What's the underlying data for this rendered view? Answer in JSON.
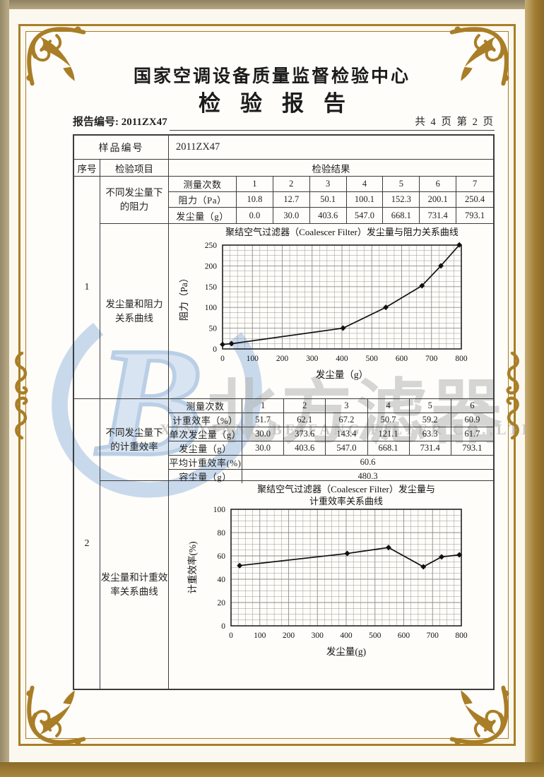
{
  "page": {
    "org_title": "国家空调设备质量监督检验中心",
    "report_title": "检验报告",
    "report_no": "报告编号: 2011ZX47",
    "page_info": "共 4 页 第 2 页"
  },
  "table": {
    "sample_no_label": "样品编号",
    "sample_no_value": "2011ZX47",
    "col_serial": "序号",
    "col_item": "检验项目",
    "col_result": "检验结果",
    "section1": {
      "serial": "1",
      "item": "不同发尘量下\n的阻力",
      "curve_item": "发尘量和阻力\n关系曲线",
      "measure_label": "测量次数",
      "measure_values": [
        "1",
        "2",
        "3",
        "4",
        "5",
        "6",
        "7"
      ],
      "resistance_label": "阻力（Pa）",
      "resistance_values": [
        "10.8",
        "12.7",
        "50.1",
        "100.1",
        "152.3",
        "200.1",
        "250.4"
      ],
      "dust_label": "发尘量（g）",
      "dust_values": [
        "0.0",
        "30.0",
        "403.6",
        "547.0",
        "668.1",
        "731.4",
        "793.1"
      ]
    },
    "section2": {
      "serial": "2",
      "item": "不同发尘量下\n的计重效率",
      "curve_item": "发尘量和计重效\n率关系曲线",
      "measure_label": "测量次数",
      "measure_values": [
        "1",
        "2",
        "3",
        "4",
        "5",
        "6"
      ],
      "eff_label": "计重效率（%）",
      "eff_values": [
        "51.7",
        "62.1",
        "67.2",
        "50.7",
        "59.2",
        "60.9"
      ],
      "single_label": "单次发尘量（g）",
      "single_values": [
        "30.0",
        "373.6",
        "143.4",
        "121.1",
        "63.3",
        "61.7"
      ],
      "dust_label": "发尘量（g）",
      "dust_values": [
        "30.0",
        "403.6",
        "547.0",
        "668.1",
        "731.4",
        "793.1"
      ],
      "avg_label": "平均计重效率(%)",
      "avg_value": "60.6",
      "capacity_label": "容尘量（g）",
      "capacity_value": "480.3"
    }
  },
  "watermark": {
    "logo": "B",
    "text": "北方滤器",
    "subtext": "XINXIANG BEIFANG FILTER CO.,LTD"
  },
  "colors": {
    "frame_gold": "#a97e27",
    "watermark_blue": "#bcd1ea",
    "watermark_gray": "#b5b5b5"
  },
  "chart_data": [
    {
      "type": "line",
      "title": "聚结空气过滤器（Coalescer Filter）发尘量与阻力关系曲线",
      "xlabel": "发尘量（g）",
      "ylabel": "阻力（Pa）",
      "xlim": [
        0,
        800
      ],
      "ylim": [
        0,
        250
      ],
      "xticks": [
        0,
        100,
        200,
        300,
        400,
        500,
        600,
        700,
        800
      ],
      "yticks": [
        0,
        50,
        100,
        150,
        200,
        250
      ],
      "xgrid_step": 25,
      "ygrid_step": 12.5,
      "grid": true,
      "legend": "none",
      "marker": "diamond",
      "x": [
        0.0,
        30.0,
        403.6,
        547.0,
        668.1,
        731.4,
        793.1
      ],
      "y": [
        10.8,
        12.7,
        50.1,
        100.1,
        152.3,
        200.1,
        250.4
      ]
    },
    {
      "type": "line",
      "title": "聚结空气过滤器（Coalescer Filter）发尘量与 计重效率关系曲线",
      "title_lines": [
        "聚结空气过滤器（Coalescer Filter）发尘量与",
        "计重效率关系曲线"
      ],
      "xlabel": "发尘量(g)",
      "ylabel": "计重效率(%)",
      "xlim": [
        0,
        800
      ],
      "ylim": [
        0,
        100
      ],
      "xticks": [
        0,
        100,
        200,
        300,
        400,
        500,
        600,
        700,
        800
      ],
      "yticks": [
        0,
        20,
        40,
        60,
        80,
        100
      ],
      "xgrid_step": 25,
      "ygrid_step": 5,
      "grid": true,
      "legend": "none",
      "marker": "diamond",
      "x": [
        30.0,
        403.6,
        547.0,
        668.1,
        731.4,
        793.1
      ],
      "y": [
        51.7,
        62.1,
        67.2,
        50.7,
        59.2,
        60.9
      ]
    }
  ]
}
